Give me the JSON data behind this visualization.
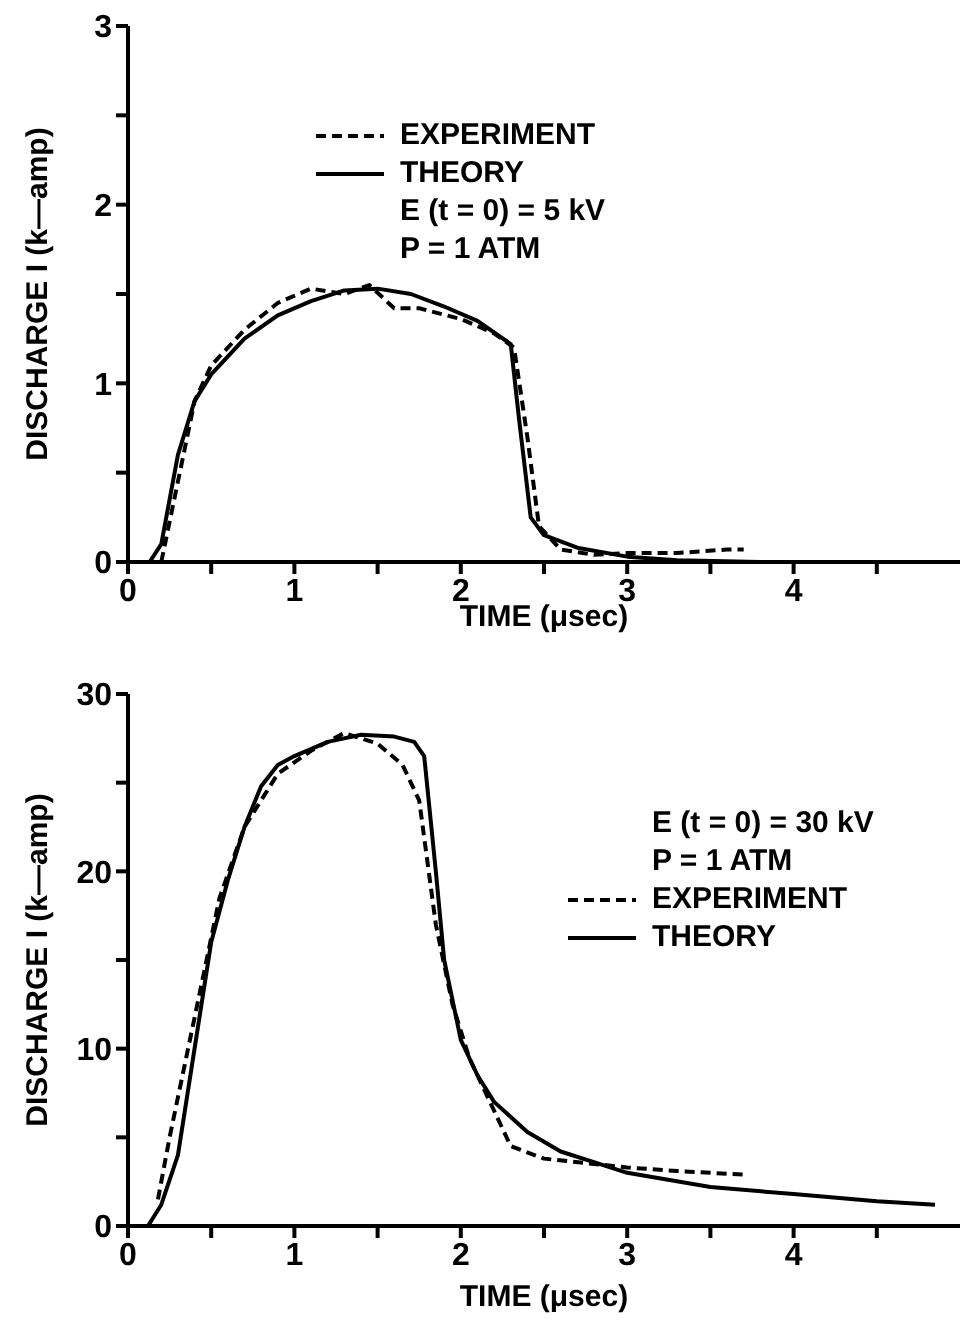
{
  "chart_data": [
    {
      "type": "line",
      "xlabel": "TIME (μsec)",
      "ylabel": "DISCHARGE I (k—amp)",
      "xlim": [
        0,
        5
      ],
      "ylim": [
        0,
        3
      ],
      "xticks": [
        0,
        {
          "value": 0.5,
          "label": null
        },
        1,
        {
          "value": 1.5,
          "label": null
        },
        2,
        {
          "value": 2.5,
          "label": null
        },
        3,
        {
          "value": 3.5,
          "label": null
        },
        4,
        {
          "value": 4.5,
          "label": null
        }
      ],
      "yticks": [
        0,
        {
          "value": 0.5,
          "label": null
        },
        1,
        {
          "value": 1.5,
          "label": null
        },
        2,
        {
          "value": 2.5,
          "label": null
        },
        3
      ],
      "grid": false,
      "legend": "top",
      "marker": "none",
      "annotations": [
        "E (t = 0) = 5 kV",
        "P = 1 ATM"
      ],
      "series": [
        {
          "name": "EXPERIMENT",
          "color": "#000000",
          "line_style": "dashed",
          "x": [
            0.2,
            0.3,
            0.4,
            0.5,
            0.7,
            0.9,
            1.1,
            1.3,
            1.45,
            1.6,
            1.75,
            2.0,
            2.2,
            2.32,
            2.4,
            2.47,
            2.6,
            2.8,
            3.0,
            3.3,
            3.6,
            3.7
          ],
          "values": [
            0,
            0.45,
            0.9,
            1.1,
            1.3,
            1.45,
            1.53,
            1.5,
            1.55,
            1.42,
            1.42,
            1.36,
            1.28,
            1.2,
            0.7,
            0.2,
            0.07,
            0.04,
            0.05,
            0.05,
            0.07,
            0.07
          ]
        },
        {
          "name": "THEORY",
          "color": "#000000",
          "line_style": "solid",
          "x": [
            0.13,
            0.2,
            0.3,
            0.4,
            0.5,
            0.7,
            0.9,
            1.1,
            1.3,
            1.5,
            1.7,
            1.9,
            2.1,
            2.3,
            2.35,
            2.42,
            2.5,
            2.7,
            3.0,
            3.3,
            3.8
          ],
          "values": [
            0,
            0.1,
            0.6,
            0.9,
            1.05,
            1.25,
            1.38,
            1.46,
            1.52,
            1.53,
            1.5,
            1.43,
            1.35,
            1.22,
            0.8,
            0.25,
            0.15,
            0.08,
            0.03,
            0.01,
            0
          ]
        }
      ]
    },
    {
      "type": "line",
      "xlabel": "TIME (μsec)",
      "ylabel": "DISCHARGE I (k—amp)",
      "xlim": [
        0,
        5
      ],
      "ylim": [
        0,
        30
      ],
      "xticks": [
        0,
        {
          "value": 0.5,
          "label": null
        },
        1,
        {
          "value": 1.5,
          "label": null
        },
        2,
        {
          "value": 2.5,
          "label": null
        },
        3,
        {
          "value": 3.5,
          "label": null
        },
        4,
        {
          "value": 4.5,
          "label": null
        }
      ],
      "yticks": [
        0,
        {
          "value": 5,
          "label": null
        },
        10,
        {
          "value": 15,
          "label": null
        },
        20,
        {
          "value": 25,
          "label": null
        },
        30
      ],
      "grid": false,
      "legend": "right",
      "marker": "none",
      "annotations": [
        "E (t = 0) = 30 kV",
        "P = 1 ATM"
      ],
      "series": [
        {
          "name": "EXPERIMENT",
          "color": "#000000",
          "line_style": "dashed",
          "x": [
            0.18,
            0.25,
            0.35,
            0.45,
            0.55,
            0.7,
            0.9,
            1.1,
            1.3,
            1.5,
            1.65,
            1.75,
            1.85,
            1.95,
            2.05,
            2.2,
            2.3,
            2.5,
            2.8,
            3.0,
            3.3,
            3.7
          ],
          "values": [
            1.5,
            5,
            9.5,
            14,
            18.5,
            22.5,
            25.5,
            26.8,
            27.8,
            27.2,
            26,
            24,
            17,
            12.5,
            9.5,
            6.5,
            4.5,
            3.8,
            3.5,
            3.3,
            3.1,
            2.9
          ]
        },
        {
          "name": "THEORY",
          "color": "#000000",
          "line_style": "solid",
          "x": [
            0.12,
            0.2,
            0.3,
            0.4,
            0.5,
            0.6,
            0.7,
            0.8,
            0.9,
            1.0,
            1.2,
            1.4,
            1.6,
            1.72,
            1.78,
            1.85,
            1.9,
            2.0,
            2.1,
            2.2,
            2.4,
            2.6,
            2.8,
            3.0,
            3.5,
            4.0,
            4.5,
            4.85
          ],
          "values": [
            0,
            1.2,
            4,
            10,
            16,
            19.5,
            22.5,
            24.8,
            26,
            26.5,
            27.3,
            27.7,
            27.6,
            27.3,
            26.5,
            20,
            15,
            10.5,
            8.5,
            7,
            5.3,
            4.2,
            3.6,
            3.0,
            2.2,
            1.8,
            1.4,
            1.2
          ]
        }
      ]
    }
  ]
}
